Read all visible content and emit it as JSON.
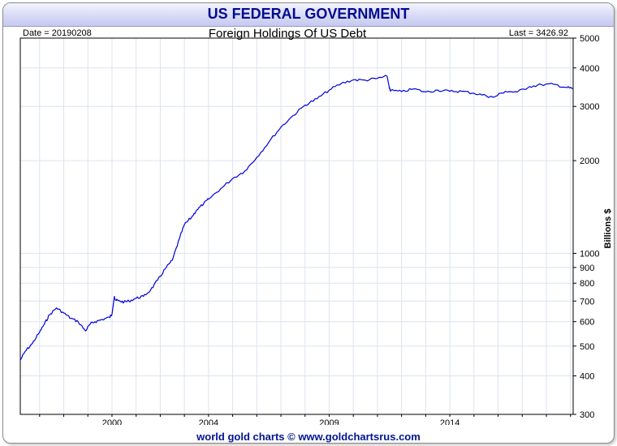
{
  "header": {
    "title": "US FEDERAL GOVERNMENT"
  },
  "meta": {
    "date_label": "Date = 20190208",
    "last_label": "Last = 3426.92"
  },
  "footer": {
    "credit": "world gold charts © www.goldchartsrus.com"
  },
  "colors": {
    "line": "#0000dd",
    "title": "#000c8f",
    "grid": "#dde3ef"
  },
  "chart_data": {
    "type": "line",
    "title": "Foreign Holdings Of US Debt",
    "ylabel": "Billions $",
    "xlabel": "",
    "yscale": "log",
    "ylim": [
      300,
      5000
    ],
    "xlim": [
      1996.2,
      2019.11
    ],
    "x_ticks": [
      "2000",
      "2004",
      "2009",
      "2014"
    ],
    "x_tick_values": [
      2000,
      2004,
      2009,
      2014
    ],
    "y_ticks": [
      "300",
      "400",
      "500",
      "600",
      "700",
      "800",
      "900",
      "1000",
      "2000",
      "3000",
      "4000",
      "5000"
    ],
    "y_tick_values": [
      300,
      400,
      500,
      600,
      700,
      800,
      900,
      1000,
      2000,
      3000,
      4000,
      5000
    ],
    "grid": true,
    "series": [
      {
        "name": "Foreign Holdings Of US Debt",
        "x": [
          1996.2,
          1996.4,
          1996.7,
          1997.0,
          1997.2,
          1997.4,
          1997.7,
          1998.0,
          1998.3,
          1998.6,
          1998.9,
          1999.1,
          1999.3,
          1999.6,
          1999.9,
          2000.0,
          2000.1,
          2000.15,
          2000.3,
          2000.5,
          2000.7,
          2001.0,
          2001.3,
          2001.6,
          2001.9,
          2002.2,
          2002.5,
          2002.8,
          2003.0,
          2003.3,
          2003.5,
          2003.8,
          2004.0,
          2004.5,
          2005.0,
          2005.5,
          2006.0,
          2006.5,
          2007.0,
          2007.5,
          2008.0,
          2008.5,
          2009.0,
          2009.5,
          2010.0,
          2010.5,
          2011.0,
          2011.4,
          2011.5,
          2011.55,
          2012.0,
          2012.5,
          2013.0,
          2013.5,
          2014.0,
          2014.5,
          2015.0,
          2015.5,
          2015.8,
          2016.3,
          2016.8,
          2017.3,
          2017.8,
          2018.3,
          2018.8,
          2019.11
        ],
        "y": [
          450,
          480,
          510,
          555,
          590,
          630,
          665,
          640,
          615,
          600,
          560,
          590,
          600,
          610,
          620,
          635,
          725,
          705,
          700,
          695,
          700,
          715,
          725,
          760,
          820,
          890,
          950,
          1120,
          1240,
          1310,
          1380,
          1450,
          1500,
          1620,
          1750,
          1850,
          2050,
          2300,
          2570,
          2800,
          3030,
          3180,
          3390,
          3560,
          3660,
          3650,
          3700,
          3760,
          3430,
          3380,
          3350,
          3420,
          3340,
          3390,
          3360,
          3360,
          3310,
          3250,
          3210,
          3360,
          3340,
          3480,
          3530,
          3540,
          3460,
          3426.92
        ]
      }
    ]
  }
}
